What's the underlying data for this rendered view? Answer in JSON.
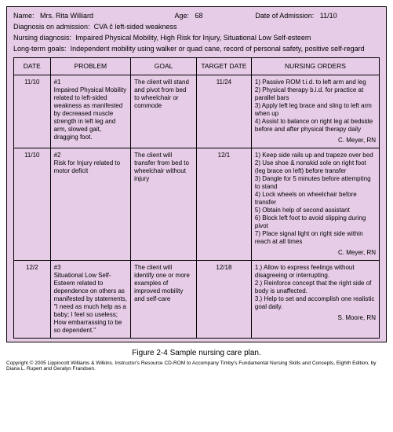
{
  "patient": {
    "name_label": "Name:",
    "name_value": "Mrs. Rita Williard",
    "age_label": "Age:",
    "age_value": "68",
    "doa_label": "Date of Admission:",
    "doa_value": "11/10",
    "dx_label": "Diagnosis on admission:",
    "dx_value": "CVA ĉ left-sided weakness",
    "ndx_label": "Nursing diagnosis:",
    "ndx_value": "Impaired Physical Mobility, High Risk for Injury, Situational Low Self-esteem",
    "goals_label": "Long-term goals:",
    "goals_value": "Independent mobility using walker or quad cane, record of personal safety, positive self-regard"
  },
  "columns": {
    "date": "DATE",
    "problem": "PROBLEM",
    "goal": "GOAL",
    "target": "TARGET DATE",
    "orders": "NURSING ORDERS"
  },
  "rows": [
    {
      "date": "11/10",
      "problem_num": "#1",
      "problem": "Impaired Physical Mobility related to left-sided weakness as manifested by decreased muscle strength in left leg and arm, slowed gait, dragging foot.",
      "goal": "The client will stand and pivot from bed to wheelchair or commode",
      "target": "11/24",
      "orders": "1) Passive ROM t.i.d. to left arm and leg\n2) Physical therapy b.i.d. for practice at parallel bars\n3) Apply left leg brace and sling to left arm when up\n4) Assist to balance on right leg at bedside before and after physical therapy daily",
      "signature": "C. Meyer, RN"
    },
    {
      "date": "11/10",
      "problem_num": "#2",
      "problem": "Risk for Injury related to motor deficit",
      "goal": "The client will transfer from bed to wheelchair without injury",
      "target": "12/1",
      "orders": "1) Keep side rails up and trapeze over bed\n2) Use shoe & nonskid sole on right foot (leg brace on left) before transfer\n3) Dangle for 5 minutes before attempting to stand\n4) Lock wheels on wheelchair before transfer\n5) Obtain help of second assistant\n6) Block left foot to avoid slipping during pivot\n7) Place signal light on right side within reach at all times",
      "signature": "C. Meyer, RN"
    },
    {
      "date": "12/2",
      "problem_num": "#3",
      "problem": "Situational Low Self-Esteem related to dependence on others as manifested by statements, \"I need as much help as a baby; I feel so useless; How embarrassing to be so dependent.\"",
      "goal": "The client will identify one or more examples of improved mobility and self-care",
      "target": "12/18",
      "orders": "1.) Allow to express feelings without disagreeing or interrupting.\n2.) Reinforce concept that the right side of body is unaffected.\n3.) Help to set and accomplish one realistic goal daily.",
      "signature": "S. Moore, RN"
    }
  ],
  "caption": "Figure 2-4 Sample nursing care plan.",
  "copyright": "Copyright © 2005 Lippincott Williams & Wilkins.  Instructor's Resource CD-ROM to Accompany Timby's Fundamental Nursing Skills and Concepts, Eighth Edition, by Diana L. Rupert and Geralyn Frandsen."
}
